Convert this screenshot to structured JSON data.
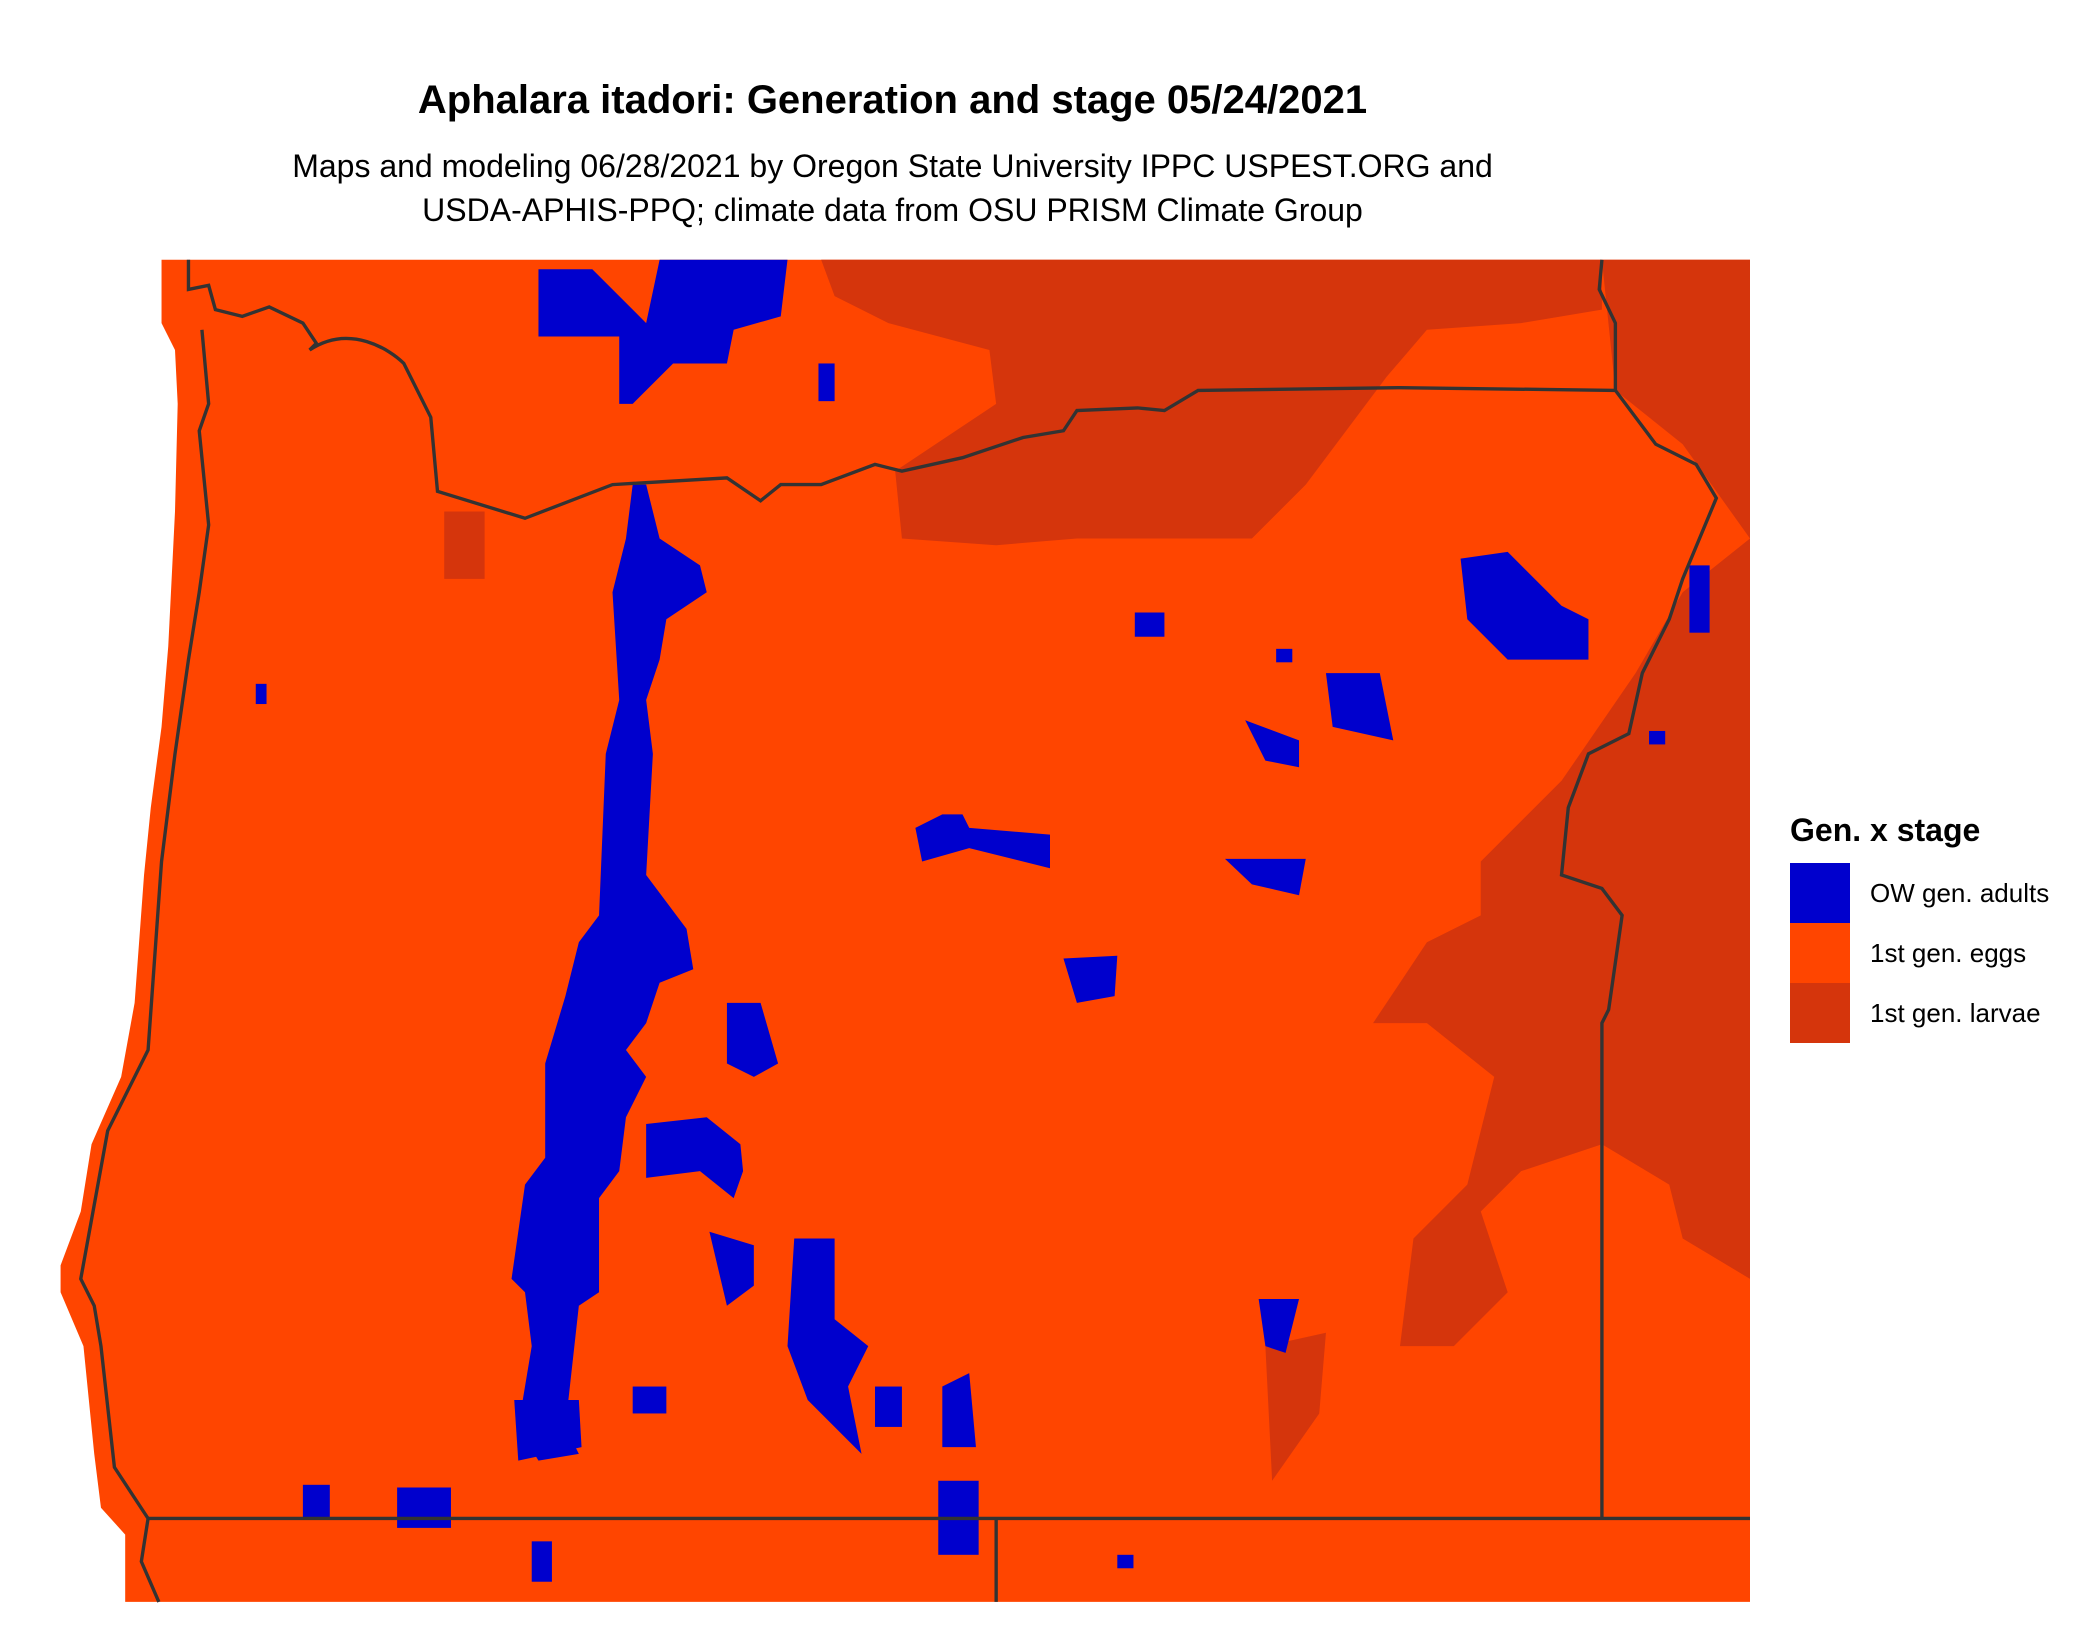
{
  "title": "Aphalara itadori: Generation and stage 05/24/2021",
  "subtitle_line1": "Maps and modeling 06/28/2021 by Oregon State University IPPC USPEST.ORG and",
  "subtitle_line2": "USDA-APHIS-PPQ; climate data from OSU PRISM Climate Group",
  "legend": {
    "title": "Gen. x stage",
    "items": [
      {
        "label": "OW gen. adults",
        "color": "#0000CD"
      },
      {
        "label": "1st gen. eggs",
        "color": "#FF4500"
      },
      {
        "label": "1st gen. larvae",
        "color": "#D5350C"
      }
    ]
  },
  "boundary_color": "#333333"
}
